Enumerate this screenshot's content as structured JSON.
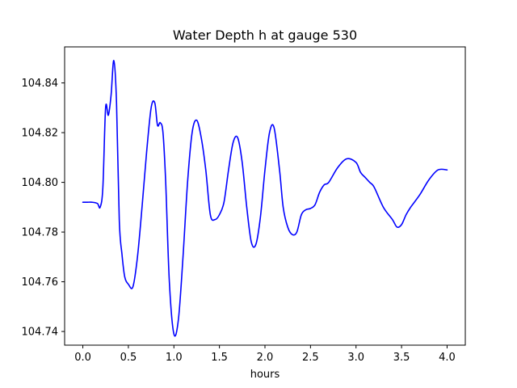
{
  "chart_data": {
    "type": "line",
    "title": "Water Depth h at gauge 530",
    "xlabel": "hours",
    "ylabel": "",
    "xlim": [
      -0.2,
      4.2
    ],
    "ylim": [
      104.7345,
      104.8545
    ],
    "xticks": [
      0.0,
      0.5,
      1.0,
      1.5,
      2.0,
      2.5,
      3.0,
      3.5,
      4.0
    ],
    "xtick_labels": [
      "0.0",
      "0.5",
      "1.0",
      "1.5",
      "2.0",
      "2.5",
      "3.0",
      "3.5",
      "4.0"
    ],
    "yticks": [
      104.74,
      104.76,
      104.78,
      104.8,
      104.82,
      104.84
    ],
    "ytick_labels": [
      "104.74",
      "104.76",
      "104.78",
      "104.80",
      "104.82",
      "104.84"
    ],
    "grid": false,
    "series": [
      {
        "name": "",
        "color": "#0000ff",
        "x": [
          0.0,
          0.05,
          0.1,
          0.16,
          0.19,
          0.22,
          0.25,
          0.28,
          0.31,
          0.34,
          0.37,
          0.4,
          0.43,
          0.46,
          0.5,
          0.55,
          0.6,
          0.65,
          0.7,
          0.75,
          0.79,
          0.82,
          0.85,
          0.88,
          0.91,
          0.95,
          1.0,
          1.05,
          1.1,
          1.15,
          1.2,
          1.25,
          1.3,
          1.35,
          1.4,
          1.45,
          1.5,
          1.55,
          1.6,
          1.65,
          1.7,
          1.75,
          1.8,
          1.85,
          1.9,
          1.95,
          2.0,
          2.05,
          2.1,
          2.16,
          2.2,
          2.25,
          2.3,
          2.35,
          2.4,
          2.45,
          2.5,
          2.55,
          2.6,
          2.65,
          2.7,
          2.8,
          2.9,
          3.0,
          3.05,
          3.1,
          3.15,
          3.2,
          3.3,
          3.4,
          3.45,
          3.5,
          3.55,
          3.6,
          3.7,
          3.8,
          3.9,
          4.0
        ],
        "y": [
          104.792,
          104.792,
          104.792,
          104.7915,
          104.79,
          104.798,
          104.83,
          104.827,
          104.835,
          104.849,
          104.832,
          104.785,
          104.771,
          104.762,
          104.759,
          104.758,
          104.77,
          104.79,
          104.812,
          104.83,
          104.832,
          104.823,
          104.824,
          104.82,
          104.8,
          104.76,
          104.739,
          104.745,
          104.77,
          104.8,
          104.82,
          104.825,
          104.818,
          104.805,
          104.787,
          104.785,
          104.787,
          104.792,
          104.805,
          104.816,
          104.818,
          104.808,
          104.79,
          104.776,
          104.775,
          104.786,
          104.805,
          104.82,
          104.822,
          104.805,
          104.79,
          104.782,
          104.779,
          104.78,
          104.787,
          104.789,
          104.7895,
          104.791,
          104.796,
          104.799,
          104.8,
          104.806,
          104.8095,
          104.808,
          104.804,
          104.802,
          104.8,
          104.798,
          104.79,
          104.785,
          104.782,
          104.783,
          104.787,
          104.79,
          104.795,
          104.801,
          104.805,
          104.805
        ]
      }
    ]
  }
}
